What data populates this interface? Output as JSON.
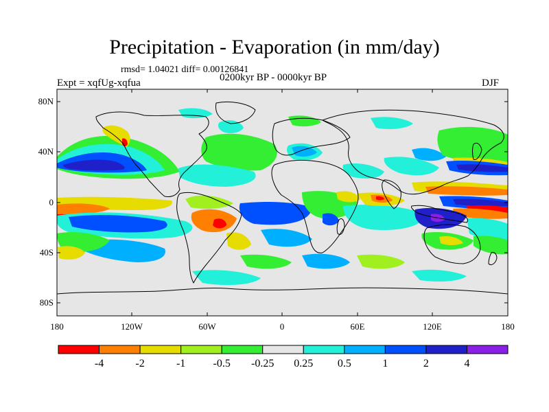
{
  "title": "Precipitation - Evaporation (in mm/day)",
  "stats": "rmsd= 1.04021 diff= 0.00126841",
  "period": "0200kyr BP - 0000kyr BP",
  "experiment": "Expt = xqfUg-xqfua",
  "season": "DJF",
  "axes": {
    "lat_ticks": [
      "80N",
      "40N",
      "0",
      "40S",
      "80S"
    ],
    "lon_ticks": [
      "180",
      "120W",
      "60W",
      "0",
      "60E",
      "120E",
      "180"
    ]
  },
  "colorbar": {
    "colors": [
      "#ff0000",
      "#ff8000",
      "#e6dc00",
      "#a0f020",
      "#33ee33",
      "#e6e6e6",
      "#22f0d8",
      "#00b0ff",
      "#0050ff",
      "#2020c8",
      "#8a20e8"
    ],
    "labels": [
      "-4",
      "-2",
      "-1",
      "-0.5",
      "-0.25",
      "0.25",
      "0.5",
      "1",
      "2",
      "4"
    ]
  },
  "palette": {
    "land_background": "#e6e6e6",
    "coastline": "#000000"
  }
}
